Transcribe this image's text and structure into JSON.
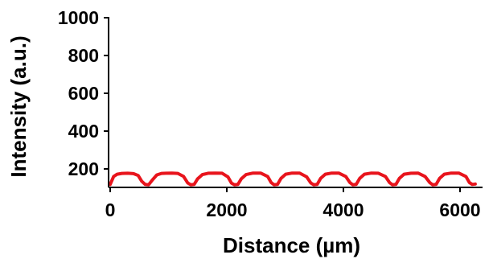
{
  "chart_data": {
    "type": "line",
    "xlabel": "Distance (µm)",
    "ylabel": "Intensity (a.u.)",
    "xlim": [
      0,
      6300
    ],
    "ylim": [
      100,
      1000
    ],
    "xticks": [
      0,
      2000,
      4000,
      6000
    ],
    "yticks": [
      200,
      400,
      600,
      800,
      1000
    ],
    "xtick_labels": [
      "0",
      "2000",
      "4000",
      "6000"
    ],
    "ytick_labels": [
      "200",
      "400",
      "600",
      "800",
      "1000"
    ],
    "grid": false,
    "legend": "none",
    "colors": {
      "series": "#e8141c",
      "axis": "#000000"
    },
    "series": [
      {
        "x": [
          0,
          60,
          120,
          200,
          300,
          400,
          480,
          540,
          600,
          660,
          720,
          800,
          880,
          960,
          1060,
          1160,
          1260,
          1330,
          1380,
          1440,
          1500,
          1580,
          1680,
          1800,
          1920,
          2020,
          2080,
          2130,
          2190,
          2250,
          2330,
          2450,
          2580,
          2700,
          2760,
          2810,
          2870,
          2930,
          3010,
          3120,
          3250,
          3370,
          3440,
          3490,
          3550,
          3610,
          3690,
          3800,
          3920,
          4040,
          4110,
          4160,
          4220,
          4280,
          4360,
          4480,
          4600,
          4720,
          4790,
          4840,
          4900,
          4960,
          5040,
          5160,
          5280,
          5400,
          5480,
          5530,
          5590,
          5650,
          5730,
          5850,
          5980,
          6100,
          6160,
          6210,
          6260
        ],
        "y": [
          118,
          160,
          172,
          176,
          177,
          175,
          165,
          135,
          118,
          116,
          140,
          168,
          176,
          177,
          178,
          176,
          160,
          126,
          116,
          118,
          148,
          170,
          177,
          178,
          177,
          158,
          125,
          116,
          118,
          148,
          170,
          178,
          178,
          160,
          128,
          116,
          118,
          150,
          172,
          178,
          178,
          158,
          126,
          116,
          118,
          150,
          172,
          178,
          178,
          160,
          128,
          116,
          118,
          150,
          172,
          178,
          177,
          160,
          128,
          116,
          118,
          150,
          172,
          177,
          178,
          160,
          128,
          116,
          118,
          150,
          172,
          178,
          178,
          160,
          128,
          118,
          120
        ]
      }
    ]
  }
}
